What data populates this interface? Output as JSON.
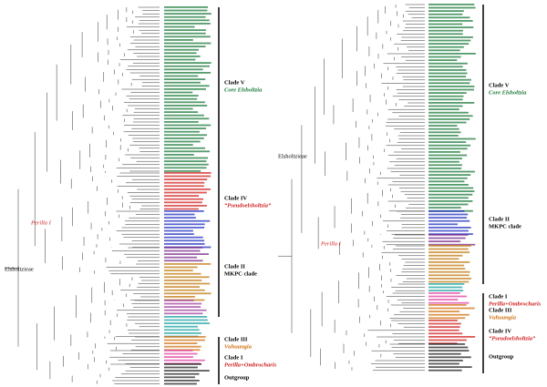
{
  "left": {
    "root_label": "Elsholtzieae",
    "node_label": "Perilla I",
    "clades": [
      {
        "name": "Clade V",
        "group": "Core Elsholtzia"
      },
      {
        "name": "Clade IV",
        "group": "“Pseudoelsholtzia”"
      },
      {
        "name": "Clade II",
        "group": "MKPC clade"
      },
      {
        "name": "Clade III",
        "group": "Vuhuangia"
      },
      {
        "name": "Clade I",
        "group": "Perilla+Ombrocharis"
      },
      {
        "name": "Outgroup"
      }
    ]
  },
  "right": {
    "root_label": "Elsholtzieae",
    "node_label": "Perilla I",
    "clades": [
      {
        "name": "Clade V",
        "group": "Core Elsholtzia"
      },
      {
        "name": "Clade II",
        "group": "MKPC clade"
      },
      {
        "name": "Clade I",
        "group": "Perilla+Ombrocharis"
      },
      {
        "name": "Clade III",
        "group": "Vuhuangia"
      },
      {
        "name": "Clade IV",
        "group": "“Pseudoelsholtzia”"
      },
      {
        "name": "Outgroup"
      }
    ]
  }
}
